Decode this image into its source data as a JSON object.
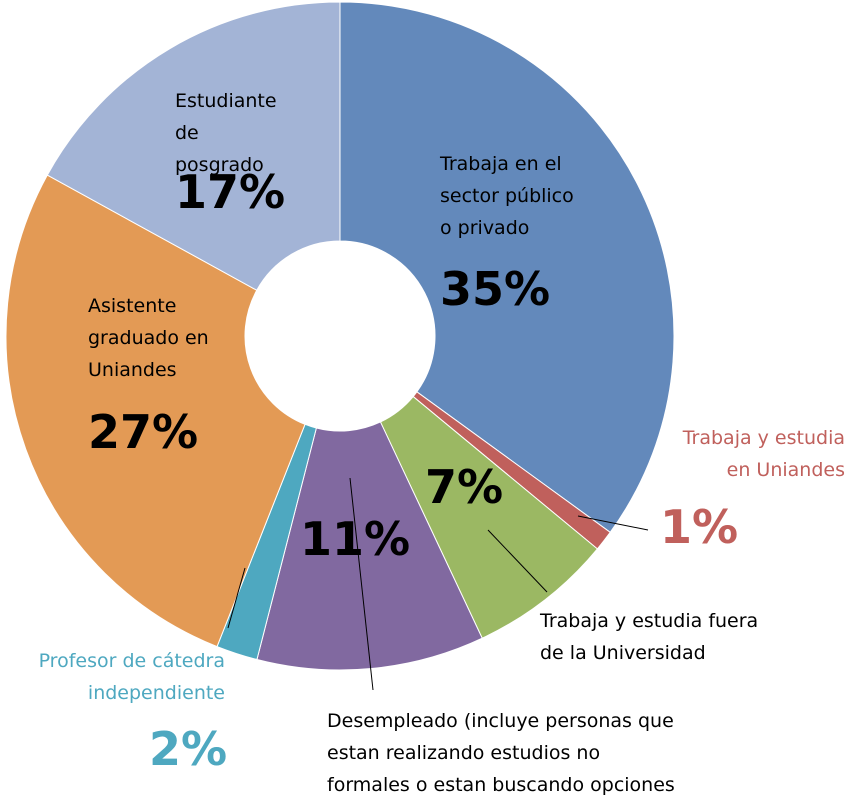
{
  "chart_data": {
    "type": "donut",
    "categories": [
      "Trabaja en el sector público o privado",
      "Trabaja y estudia en Uniandes",
      "Trabaja y estudia fuera de la Universidad",
      "Desempleado (incluye personas que estan realizando estudios no formales o estan buscando opciones de posgrado)",
      "Profesor de cátedra independiente",
      "Asistente graduado en Uniandes",
      "Estudiante de posgrado"
    ],
    "values": [
      35,
      1,
      7,
      11,
      2,
      27,
      17
    ],
    "value_labels": [
      "35%",
      "1%",
      "7%",
      "11%",
      "2%",
      "27%",
      "17%"
    ],
    "colors": [
      "#6389bb",
      "#c0605c",
      "#9bb863",
      "#8169a0",
      "#4ea8c0",
      "#e39a55",
      "#a3b4d6"
    ]
  }
}
